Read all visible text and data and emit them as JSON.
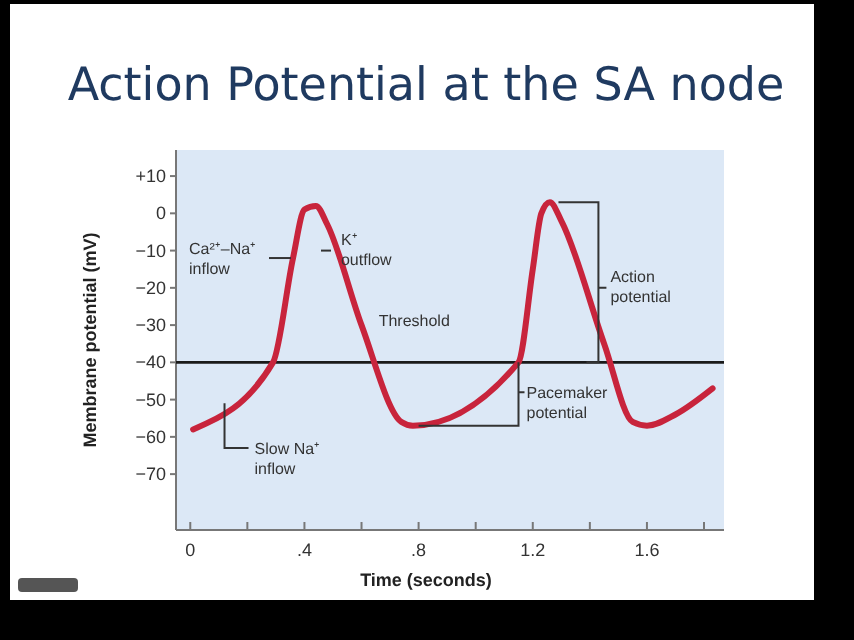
{
  "chart_data": {
    "type": "line",
    "title": "Action Potential at the SA node",
    "xlabel": "Time (seconds)",
    "ylabel": "Membrane potential (mV)",
    "series": [
      {
        "color": "#c8243c",
        "x": [
          0.01,
          0.29,
          0.36,
          0.4,
          0.44,
          0.48,
          0.6,
          0.74,
          0.78,
          1.15,
          1.2,
          1.23,
          1.26,
          1.3,
          1.45,
          1.55,
          1.6,
          1.7,
          1.83
        ],
        "values": [
          -58,
          -40,
          -12,
          1,
          2,
          -3,
          -30,
          -56,
          -57,
          -40,
          -15,
          0,
          3,
          -2,
          -35,
          -56,
          -57,
          -54,
          -47
        ]
      }
    ],
    "xlim": [
      -0.05,
      1.87
    ],
    "ylim": [
      -85,
      17
    ],
    "xticks": [
      0,
      {
        "value": 0.2,
        "label": null
      },
      {
        "value": 0.4,
        "label": ".4"
      },
      {
        "value": 0.6,
        "label": null
      },
      {
        "value": 0.8,
        "label": ".8"
      },
      {
        "value": 1.0,
        "label": null
      },
      1.2,
      {
        "value": 1.4,
        "label": null
      },
      1.6,
      {
        "value": 1.8,
        "label": null
      }
    ],
    "yticks": [
      {
        "value": 10,
        "label": "+10"
      },
      0,
      {
        "value": -10,
        "label": "−10"
      },
      {
        "value": -20,
        "label": "−20"
      },
      {
        "value": -30,
        "label": "−30"
      },
      {
        "value": -40,
        "label": "−40"
      },
      {
        "value": -50,
        "label": "−50"
      },
      {
        "value": -60,
        "label": "−60"
      },
      {
        "value": -70,
        "label": "−70"
      }
    ],
    "ref_lines": [
      {
        "axis": "y",
        "value": -40,
        "label": "Threshold",
        "color": "#1a1a1a"
      }
    ],
    "annotations": [
      {
        "text": "Ca²⁺–Na⁺ inflow",
        "x": 0.36,
        "y": -12
      },
      {
        "text": "K⁺ outflow",
        "x": 0.5,
        "y": -10
      },
      {
        "text": "Action potential",
        "x": 1.43,
        "y": -20
      },
      "Pacemaker potential",
      {
        "text": "Slow Na⁺ inflow",
        "x": 0.12,
        "y": -51
      }
    ],
    "grid": false,
    "marker": "none",
    "line_style": "solid"
  }
}
